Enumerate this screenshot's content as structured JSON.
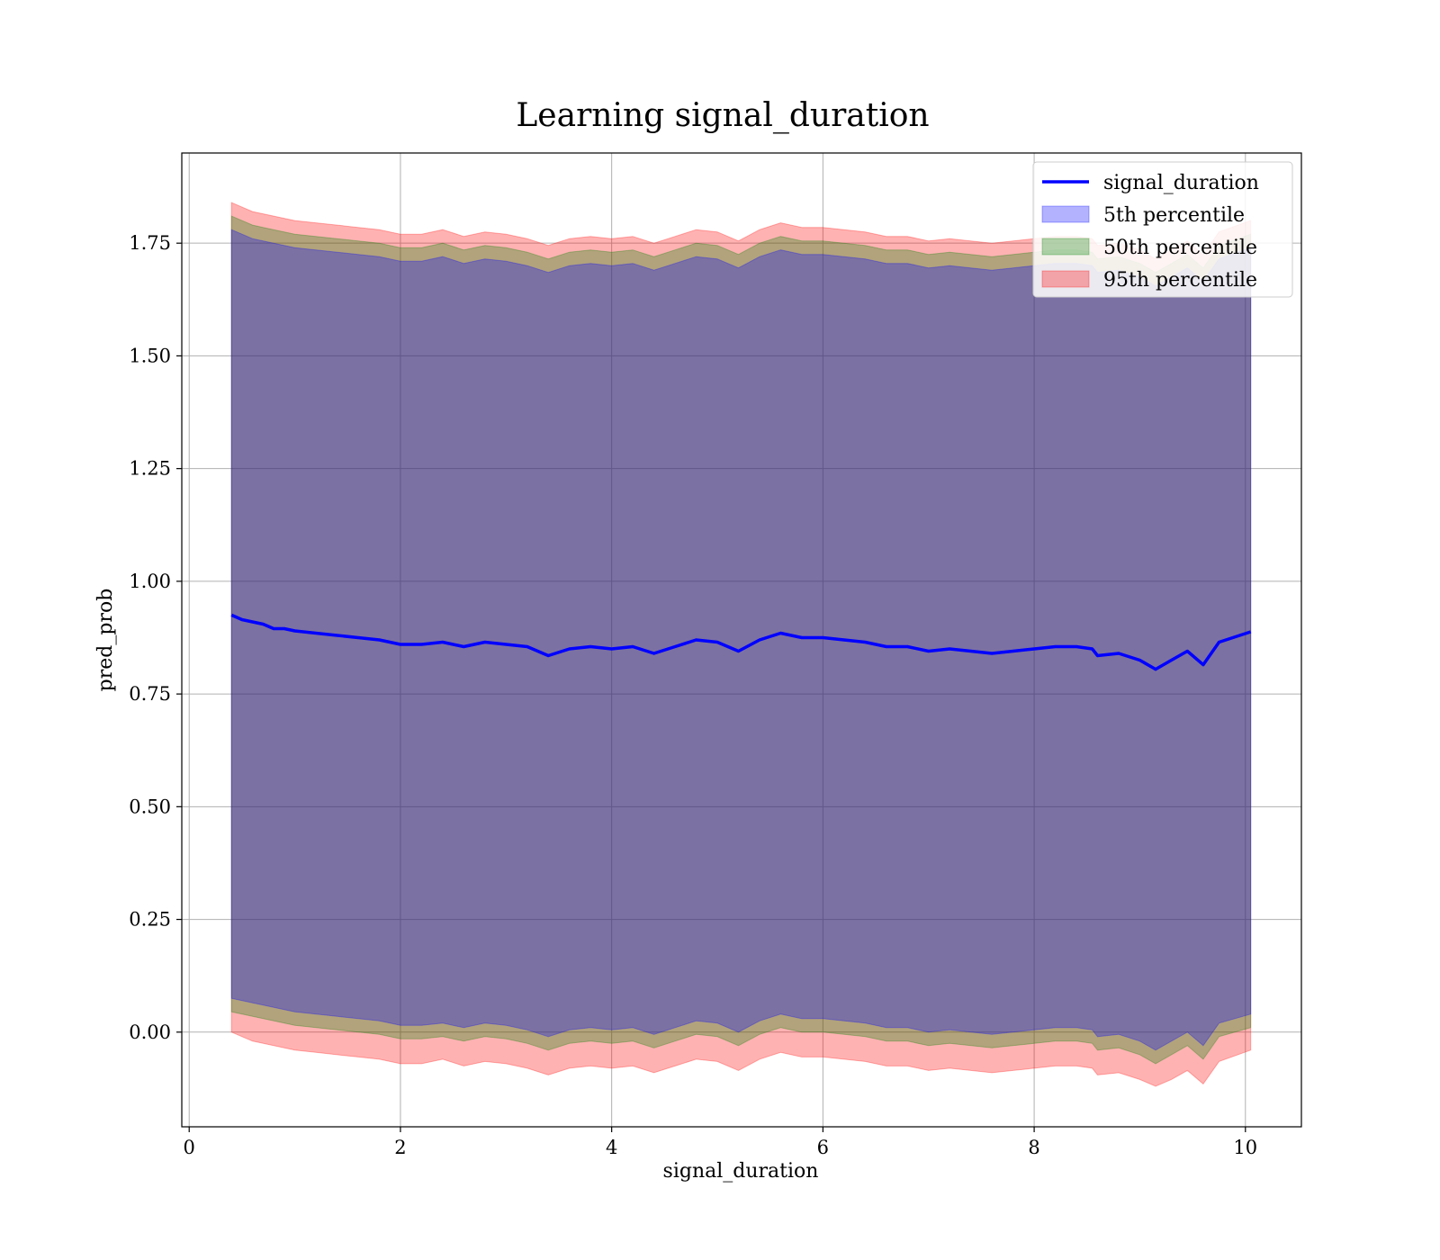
{
  "chart_data": {
    "type": "area",
    "title": "Learning signal_duration",
    "xlabel": "signal_duration",
    "ylabel": "pred_prob",
    "xlim": [
      -0.07,
      10.53
    ],
    "ylim": [
      -0.21,
      1.95
    ],
    "x_ticks": [
      0,
      2,
      4,
      6,
      8,
      10
    ],
    "x_tick_labels": [
      "0",
      "2",
      "4",
      "6",
      "8",
      "10"
    ],
    "y_ticks": [
      0.0,
      0.25,
      0.5,
      0.75,
      1.0,
      1.25,
      1.5,
      1.75
    ],
    "y_tick_labels": [
      "0.00",
      "0.25",
      "0.50",
      "0.75",
      "1.00",
      "1.25",
      "1.50",
      "1.75"
    ],
    "grid": true,
    "legend_position": "top-right",
    "x": [
      0.4,
      0.5,
      0.6,
      0.7,
      0.8,
      0.9,
      1.0,
      1.2,
      1.4,
      1.6,
      1.8,
      2.0,
      2.2,
      2.4,
      2.6,
      2.8,
      3.0,
      3.2,
      3.4,
      3.6,
      3.8,
      4.0,
      4.2,
      4.4,
      4.6,
      4.8,
      5.0,
      5.2,
      5.4,
      5.6,
      5.8,
      6.0,
      6.2,
      6.4,
      6.6,
      6.8,
      7.0,
      7.2,
      7.4,
      7.6,
      7.8,
      8.0,
      8.2,
      8.4,
      8.55,
      8.6,
      8.8,
      9.0,
      9.15,
      9.3,
      9.45,
      9.6,
      9.75,
      10.05
    ],
    "series": [
      {
        "name": "signal_duration",
        "type": "line",
        "color": "#0000ff",
        "values": [
          0.925,
          0.915,
          0.91,
          0.905,
          0.895,
          0.895,
          0.89,
          0.885,
          0.88,
          0.875,
          0.87,
          0.86,
          0.86,
          0.865,
          0.855,
          0.865,
          0.86,
          0.855,
          0.835,
          0.85,
          0.855,
          0.85,
          0.855,
          0.84,
          0.855,
          0.87,
          0.865,
          0.845,
          0.87,
          0.885,
          0.875,
          0.875,
          0.87,
          0.865,
          0.855,
          0.855,
          0.845,
          0.85,
          0.845,
          0.84,
          0.845,
          0.85,
          0.855,
          0.855,
          0.85,
          0.835,
          0.84,
          0.825,
          0.805,
          0.825,
          0.845,
          0.815,
          0.865,
          0.888
        ]
      },
      {
        "name": "5th percentile",
        "type": "band",
        "color": "#0000ff",
        "upper": [
          1.78,
          1.77,
          1.76,
          1.755,
          1.75,
          1.745,
          1.74,
          1.735,
          1.73,
          1.725,
          1.72,
          1.71,
          1.71,
          1.72,
          1.705,
          1.715,
          1.71,
          1.7,
          1.685,
          1.7,
          1.705,
          1.7,
          1.705,
          1.69,
          1.705,
          1.72,
          1.715,
          1.695,
          1.72,
          1.735,
          1.725,
          1.725,
          1.72,
          1.715,
          1.705,
          1.705,
          1.695,
          1.7,
          1.695,
          1.69,
          1.695,
          1.7,
          1.705,
          1.705,
          1.7,
          1.685,
          1.69,
          1.675,
          1.655,
          1.675,
          1.695,
          1.665,
          1.715,
          1.74
        ],
        "lower": [
          0.075,
          0.07,
          0.065,
          0.06,
          0.055,
          0.05,
          0.045,
          0.04,
          0.035,
          0.03,
          0.025,
          0.015,
          0.015,
          0.02,
          0.01,
          0.02,
          0.015,
          0.005,
          -0.01,
          0.005,
          0.01,
          0.005,
          0.01,
          -0.005,
          0.01,
          0.025,
          0.02,
          0.0,
          0.025,
          0.04,
          0.03,
          0.03,
          0.025,
          0.02,
          0.01,
          0.01,
          0.0,
          0.005,
          0.0,
          -0.005,
          0.0,
          0.005,
          0.01,
          0.01,
          0.005,
          -0.01,
          -0.005,
          -0.02,
          -0.04,
          -0.02,
          0.0,
          -0.03,
          0.02,
          0.04
        ]
      },
      {
        "name": "50th percentile",
        "type": "band",
        "color": "#008000",
        "upper": [
          1.81,
          1.8,
          1.79,
          1.785,
          1.78,
          1.775,
          1.77,
          1.765,
          1.76,
          1.755,
          1.75,
          1.74,
          1.74,
          1.75,
          1.735,
          1.745,
          1.74,
          1.73,
          1.715,
          1.73,
          1.735,
          1.73,
          1.735,
          1.72,
          1.735,
          1.75,
          1.745,
          1.725,
          1.75,
          1.765,
          1.755,
          1.755,
          1.75,
          1.745,
          1.735,
          1.735,
          1.725,
          1.73,
          1.725,
          1.72,
          1.725,
          1.73,
          1.735,
          1.735,
          1.73,
          1.715,
          1.72,
          1.705,
          1.685,
          1.705,
          1.725,
          1.695,
          1.745,
          1.77
        ],
        "lower": [
          0.045,
          0.04,
          0.035,
          0.03,
          0.025,
          0.02,
          0.015,
          0.01,
          0.005,
          0.0,
          -0.005,
          -0.015,
          -0.015,
          -0.01,
          -0.02,
          -0.01,
          -0.015,
          -0.025,
          -0.04,
          -0.025,
          -0.02,
          -0.025,
          -0.02,
          -0.035,
          -0.02,
          -0.005,
          -0.01,
          -0.03,
          -0.005,
          0.01,
          0.0,
          0.0,
          -0.005,
          -0.01,
          -0.02,
          -0.02,
          -0.03,
          -0.025,
          -0.03,
          -0.035,
          -0.03,
          -0.025,
          -0.02,
          -0.02,
          -0.025,
          -0.04,
          -0.035,
          -0.05,
          -0.07,
          -0.05,
          -0.03,
          -0.06,
          -0.01,
          0.01
        ]
      },
      {
        "name": "95th percentile",
        "type": "band",
        "color": "#ff0000",
        "upper": [
          1.84,
          1.83,
          1.82,
          1.815,
          1.81,
          1.805,
          1.8,
          1.795,
          1.79,
          1.785,
          1.78,
          1.77,
          1.77,
          1.78,
          1.765,
          1.775,
          1.77,
          1.76,
          1.745,
          1.76,
          1.765,
          1.76,
          1.765,
          1.75,
          1.765,
          1.78,
          1.775,
          1.755,
          1.78,
          1.795,
          1.785,
          1.785,
          1.78,
          1.775,
          1.765,
          1.765,
          1.755,
          1.76,
          1.755,
          1.75,
          1.755,
          1.76,
          1.765,
          1.765,
          1.76,
          1.745,
          1.75,
          1.735,
          1.715,
          1.735,
          1.755,
          1.725,
          1.775,
          1.8
        ],
        "lower": [
          0.0,
          -0.01,
          -0.02,
          -0.025,
          -0.03,
          -0.035,
          -0.04,
          -0.045,
          -0.05,
          -0.055,
          -0.06,
          -0.07,
          -0.07,
          -0.06,
          -0.075,
          -0.065,
          -0.07,
          -0.08,
          -0.095,
          -0.08,
          -0.075,
          -0.08,
          -0.075,
          -0.09,
          -0.075,
          -0.06,
          -0.065,
          -0.085,
          -0.06,
          -0.045,
          -0.055,
          -0.055,
          -0.06,
          -0.065,
          -0.075,
          -0.075,
          -0.085,
          -0.08,
          -0.085,
          -0.09,
          -0.085,
          -0.08,
          -0.075,
          -0.075,
          -0.08,
          -0.095,
          -0.09,
          -0.105,
          -0.12,
          -0.105,
          -0.085,
          -0.115,
          -0.065,
          -0.04
        ]
      }
    ]
  }
}
